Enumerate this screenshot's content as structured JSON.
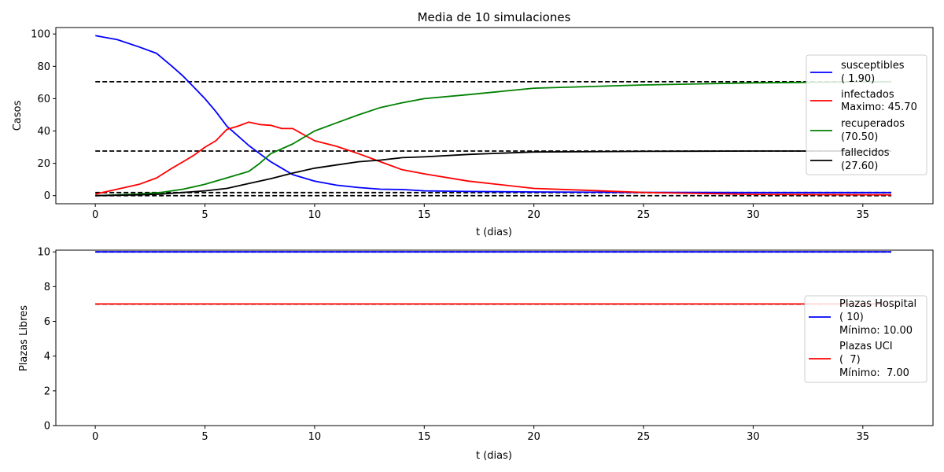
{
  "chart_data": [
    {
      "type": "line",
      "title": "Media de 10 simulaciones",
      "xlabel": "t (dias)",
      "ylabel": "Casos",
      "xlim": [
        -1.8,
        38.2
      ],
      "ylim": [
        -5,
        104
      ],
      "xticks": [
        0,
        5,
        10,
        15,
        20,
        25,
        30,
        35
      ],
      "yticks": [
        0,
        20,
        40,
        60,
        80,
        100
      ],
      "grid": false,
      "legend_position": "right",
      "series": [
        {
          "name": "susceptibles",
          "legend_extra": "( 1.90)",
          "color": "#0000ff",
          "x": [
            0,
            1,
            2,
            2.8,
            3.5,
            4,
            4.5,
            5,
            5.5,
            6,
            6.5,
            7,
            7.5,
            8,
            8.5,
            9,
            9.5,
            10,
            11,
            12,
            13,
            14,
            15,
            17,
            20,
            25,
            30,
            36.3
          ],
          "y": [
            99,
            96.5,
            92,
            88,
            80,
            74,
            67,
            60,
            52,
            43,
            37,
            31,
            26,
            21,
            17,
            13,
            11,
            9,
            6.5,
            5,
            4,
            3.8,
            3,
            2.6,
            2.3,
            2.0,
            1.9,
            1.9
          ]
        },
        {
          "name": "infectados",
          "legend_extra": "Maximo: 45.70",
          "color": "#ff0000",
          "x": [
            0,
            1,
            2,
            2.8,
            3.5,
            4,
            4.5,
            5,
            5.5,
            6,
            6.5,
            7,
            7.5,
            8,
            8.5,
            9,
            10,
            11,
            12,
            13,
            14,
            15,
            17,
            20,
            25,
            30,
            36.3
          ],
          "y": [
            1,
            4,
            7,
            11,
            17,
            21,
            25,
            30,
            34,
            41,
            43,
            45.5,
            44,
            43.5,
            41.5,
            41.5,
            34,
            30.5,
            26,
            21,
            16,
            13.5,
            9,
            4.5,
            2,
            0.8,
            0.5
          ]
        },
        {
          "name": "recuperados",
          "legend_extra": "(70.50)",
          "color": "#008000",
          "x": [
            0,
            2,
            3,
            4,
            5,
            6,
            7,
            7.5,
            8,
            9,
            10,
            11,
            12,
            13,
            14,
            15,
            17,
            20,
            25,
            30,
            36.3
          ],
          "y": [
            0,
            1,
            2,
            4,
            7,
            11,
            15,
            20,
            26,
            32,
            40,
            45,
            50,
            54.5,
            57.5,
            60,
            62.5,
            66.5,
            68.5,
            69.8,
            70.5
          ]
        },
        {
          "name": "fallecidos",
          "legend_extra": "(27.60)",
          "color": "#000000",
          "x": [
            0,
            2,
            3,
            4,
            5,
            6,
            7,
            8,
            9,
            10,
            11,
            12,
            13,
            14,
            15,
            17,
            20,
            25,
            30,
            36.3
          ],
          "y": [
            0,
            0.5,
            1,
            2,
            3,
            4.5,
            7.5,
            10.5,
            14,
            17,
            19,
            21,
            22,
            23.5,
            24,
            25.5,
            27,
            27.4,
            27.6,
            27.6
          ]
        }
      ],
      "reference_lines": [
        {
          "y": 70.5,
          "style": "dashed",
          "color": "#000000"
        },
        {
          "y": 27.6,
          "style": "dashed",
          "color": "#000000"
        },
        {
          "y": 1.9,
          "style": "dashed",
          "color": "#000000"
        },
        {
          "y": 0.0,
          "style": "dashed",
          "color": "#000000"
        }
      ]
    },
    {
      "type": "line",
      "title": "",
      "xlabel": "t (dias)",
      "ylabel": "Plazas Libres",
      "xlim": [
        -1.8,
        38.2
      ],
      "ylim": [
        0,
        10.1
      ],
      "xticks": [
        0,
        5,
        10,
        15,
        20,
        25,
        30,
        35
      ],
      "yticks": [
        0,
        2,
        4,
        6,
        8,
        10
      ],
      "grid": false,
      "legend_position": "right",
      "series": [
        {
          "name": "Plazas Hospital",
          "legend_extra": [
            "( 10)",
            "Mínimo: 10.00"
          ],
          "color": "#0000ff",
          "x": [
            0,
            36.3
          ],
          "y": [
            10,
            10
          ]
        },
        {
          "name": "Plazas UCI",
          "legend_extra": [
            "(  7)",
            "Mínimo:  7.00"
          ],
          "color": "#ff0000",
          "x": [
            0,
            36.3
          ],
          "y": [
            7,
            7
          ]
        }
      ],
      "reference_lines": [
        {
          "y": 10,
          "style": "dashed",
          "color": "#000000"
        },
        {
          "y": 7,
          "style": "dashed",
          "color": "#000000"
        }
      ]
    }
  ]
}
